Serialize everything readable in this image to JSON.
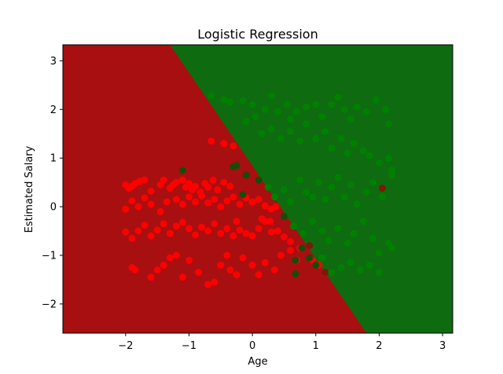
{
  "chart_data": {
    "type": "scatter",
    "title": "Logistic Regression",
    "xlabel": "Age",
    "ylabel": "Estimated Salary",
    "xlim": [
      -2.99,
      3.16
    ],
    "ylim": [
      -2.6,
      3.33
    ],
    "xticks": [
      -2,
      -1,
      0,
      1,
      2,
      3
    ],
    "yticks": [
      -2,
      -1,
      0,
      1,
      2,
      3
    ],
    "grid": false,
    "decision_boundary": {
      "points": [
        [
          -1.3,
          3.33
        ],
        [
          1.8,
          -2.6
        ]
      ],
      "region_colors": {
        "class_0": "#a80f10",
        "class_1": "#0f6b0f"
      }
    },
    "series": [
      {
        "color": "#ff0000",
        "dark_color": "#7a1a0a",
        "points": [
          [
            -2.0,
            0.45
          ],
          [
            -1.95,
            0.38
          ],
          [
            -1.9,
            0.42
          ],
          [
            -1.85,
            0.48
          ],
          [
            -1.78,
            0.52
          ],
          [
            -1.7,
            0.55
          ],
          [
            -1.6,
            0.32
          ],
          [
            -1.45,
            0.45
          ],
          [
            -1.4,
            0.55
          ],
          [
            -1.3,
            0.38
          ],
          [
            -1.25,
            0.45
          ],
          [
            -1.2,
            0.5
          ],
          [
            -1.1,
            0.55
          ],
          [
            -1.05,
            0.4
          ],
          [
            -1.0,
            0.48
          ],
          [
            -0.95,
            0.35
          ],
          [
            -0.9,
            0.42
          ],
          [
            -0.82,
            0.3
          ],
          [
            -0.75,
            0.48
          ],
          [
            -0.7,
            0.4
          ],
          [
            -0.62,
            0.55
          ],
          [
            -0.55,
            0.35
          ],
          [
            -0.45,
            0.5
          ],
          [
            -0.35,
            0.42
          ],
          [
            -2.0,
            -0.05
          ],
          [
            -1.9,
            0.12
          ],
          [
            -1.8,
            0.0
          ],
          [
            -1.7,
            0.18
          ],
          [
            -1.6,
            0.05
          ],
          [
            -1.45,
            -0.1
          ],
          [
            -1.35,
            0.1
          ],
          [
            -1.2,
            0.15
          ],
          [
            -1.1,
            0.05
          ],
          [
            -1.0,
            0.2
          ],
          [
            -0.9,
            0.1
          ],
          [
            -0.8,
            0.22
          ],
          [
            -0.7,
            0.08
          ],
          [
            -0.6,
            0.15
          ],
          [
            -0.5,
            0.0
          ],
          [
            -0.4,
            0.12
          ],
          [
            -0.3,
            0.2
          ],
          [
            -0.2,
            0.05
          ],
          [
            -0.1,
            0.18
          ],
          [
            0.0,
            0.1
          ],
          [
            0.1,
            0.15
          ],
          [
            0.2,
            0.02
          ],
          [
            0.3,
            -0.05
          ],
          [
            0.37,
            0.0
          ],
          [
            -2.0,
            -0.52
          ],
          [
            -1.9,
            -0.65
          ],
          [
            -1.8,
            -0.5
          ],
          [
            -1.7,
            -0.38
          ],
          [
            -1.6,
            -0.6
          ],
          [
            -1.5,
            -0.48
          ],
          [
            -1.4,
            -0.35
          ],
          [
            -1.3,
            -0.55
          ],
          [
            -1.2,
            -0.4
          ],
          [
            -1.1,
            -0.32
          ],
          [
            -1.0,
            -0.45
          ],
          [
            -0.9,
            -0.58
          ],
          [
            -0.8,
            -0.42
          ],
          [
            -0.7,
            -0.5
          ],
          [
            -0.6,
            -0.35
          ],
          [
            -0.5,
            -0.55
          ],
          [
            -0.4,
            -0.45
          ],
          [
            -0.3,
            -0.6
          ],
          [
            -0.2,
            -0.48
          ],
          [
            -0.1,
            -0.55
          ],
          [
            0.0,
            -0.6
          ],
          [
            0.1,
            -0.45
          ],
          [
            0.2,
            -0.3
          ],
          [
            0.3,
            -0.52
          ],
          [
            0.4,
            -0.5
          ],
          [
            0.5,
            -0.62
          ],
          [
            0.6,
            -0.72
          ],
          [
            -0.25,
            -0.3
          ],
          [
            0.15,
            -0.25
          ],
          [
            0.28,
            -0.3
          ],
          [
            -1.9,
            -1.25
          ],
          [
            -1.85,
            -1.3
          ],
          [
            -1.6,
            -1.45
          ],
          [
            -1.5,
            -1.3
          ],
          [
            -1.4,
            -1.2
          ],
          [
            -1.3,
            -1.05
          ],
          [
            -1.2,
            -1.0
          ],
          [
            -1.1,
            -1.45
          ],
          [
            -1.0,
            -1.1
          ],
          [
            -0.85,
            -1.35
          ],
          [
            -0.7,
            -1.6
          ],
          [
            -0.6,
            -1.55
          ],
          [
            -0.5,
            -1.2
          ],
          [
            -0.4,
            -1.0
          ],
          [
            -0.35,
            -1.3
          ],
          [
            -0.25,
            -1.4
          ],
          [
            -0.15,
            -1.05
          ],
          [
            0.0,
            -1.2
          ],
          [
            0.1,
            -1.4
          ],
          [
            0.2,
            -1.15
          ],
          [
            0.35,
            -1.3
          ],
          [
            0.45,
            -1.0
          ],
          [
            -0.65,
            1.35
          ],
          [
            -0.45,
            1.3
          ],
          [
            -0.3,
            1.25
          ],
          [
            -1.1,
            0.75
          ],
          [
            0.6,
            -0.9
          ],
          [
            0.7,
            -1.1
          ],
          [
            0.75,
            -0.85
          ],
          [
            0.9,
            -0.8
          ],
          [
            0.95,
            -1.1
          ],
          [
            1.05,
            -1.2
          ],
          [
            1.15,
            -1.35
          ],
          [
            2.05,
            0.38
          ]
        ]
      },
      {
        "color": "#008000",
        "dark_color": "#1a4a0a",
        "points": [
          [
            -0.65,
            2.28
          ],
          [
            -0.45,
            2.2
          ],
          [
            -0.35,
            2.15
          ],
          [
            -0.15,
            2.18
          ],
          [
            0.0,
            2.1
          ],
          [
            0.2,
            2.0
          ],
          [
            0.3,
            2.28
          ],
          [
            0.4,
            1.95
          ],
          [
            0.55,
            2.1
          ],
          [
            0.6,
            1.8
          ],
          [
            0.7,
            1.95
          ],
          [
            0.85,
            2.05
          ],
          [
            1.0,
            2.1
          ],
          [
            1.1,
            1.85
          ],
          [
            1.25,
            2.1
          ],
          [
            1.35,
            2.25
          ],
          [
            1.45,
            2.0
          ],
          [
            1.55,
            1.8
          ],
          [
            1.65,
            2.05
          ],
          [
            1.8,
            1.95
          ],
          [
            1.95,
            2.2
          ],
          [
            2.1,
            2.0
          ],
          [
            2.15,
            1.7
          ],
          [
            -0.1,
            1.75
          ],
          [
            0.05,
            1.85
          ],
          [
            0.15,
            1.5
          ],
          [
            0.3,
            1.6
          ],
          [
            0.45,
            1.4
          ],
          [
            0.6,
            1.55
          ],
          [
            0.75,
            1.35
          ],
          [
            0.85,
            1.7
          ],
          [
            1.0,
            1.4
          ],
          [
            1.15,
            1.55
          ],
          [
            1.25,
            1.2
          ],
          [
            1.4,
            1.4
          ],
          [
            1.5,
            1.1
          ],
          [
            1.6,
            1.3
          ],
          [
            1.75,
            1.15
          ],
          [
            1.85,
            1.05
          ],
          [
            2.0,
            0.9
          ],
          [
            2.15,
            1.0
          ],
          [
            2.2,
            0.75
          ],
          [
            -0.25,
            0.85
          ],
          [
            -0.1,
            0.65
          ],
          [
            0.1,
            0.55
          ],
          [
            0.25,
            0.4
          ],
          [
            0.35,
            0.2
          ],
          [
            0.5,
            0.35
          ],
          [
            0.6,
            0.1
          ],
          [
            0.75,
            0.55
          ],
          [
            0.85,
            0.3
          ],
          [
            0.95,
            0.2
          ],
          [
            1.05,
            0.5
          ],
          [
            1.15,
            0.15
          ],
          [
            1.25,
            0.4
          ],
          [
            1.35,
            0.6
          ],
          [
            1.45,
            0.2
          ],
          [
            1.55,
            0.45
          ],
          [
            1.65,
            0.05
          ],
          [
            1.8,
            0.3
          ],
          [
            1.9,
            0.5
          ],
          [
            2.05,
            0.2
          ],
          [
            2.2,
            0.65
          ],
          [
            0.5,
            -0.2
          ],
          [
            0.65,
            -0.4
          ],
          [
            0.8,
            -0.55
          ],
          [
            0.95,
            -0.3
          ],
          [
            1.1,
            -0.5
          ],
          [
            1.2,
            -0.7
          ],
          [
            1.35,
            -0.45
          ],
          [
            1.5,
            -0.75
          ],
          [
            1.6,
            -0.55
          ],
          [
            1.75,
            -0.3
          ],
          [
            1.9,
            -0.65
          ],
          [
            2.0,
            -0.95
          ],
          [
            2.15,
            -0.75
          ],
          [
            2.2,
            -0.85
          ],
          [
            1.0,
            -1.2
          ],
          [
            1.1,
            -1.05
          ],
          [
            1.25,
            -1.35
          ],
          [
            1.4,
            -1.25
          ],
          [
            1.55,
            -1.15
          ],
          [
            1.7,
            -1.3
          ],
          [
            1.85,
            -1.2
          ],
          [
            2.0,
            -1.35
          ],
          [
            -0.15,
            0.25
          ],
          [
            -0.3,
            0.82
          ],
          [
            -1.1,
            0.75
          ],
          [
            0.68,
            -1.38
          ],
          [
            0.68,
            -1.1
          ],
          [
            0.78,
            -0.85
          ],
          [
            0.9,
            -1.05
          ]
        ]
      }
    ]
  }
}
